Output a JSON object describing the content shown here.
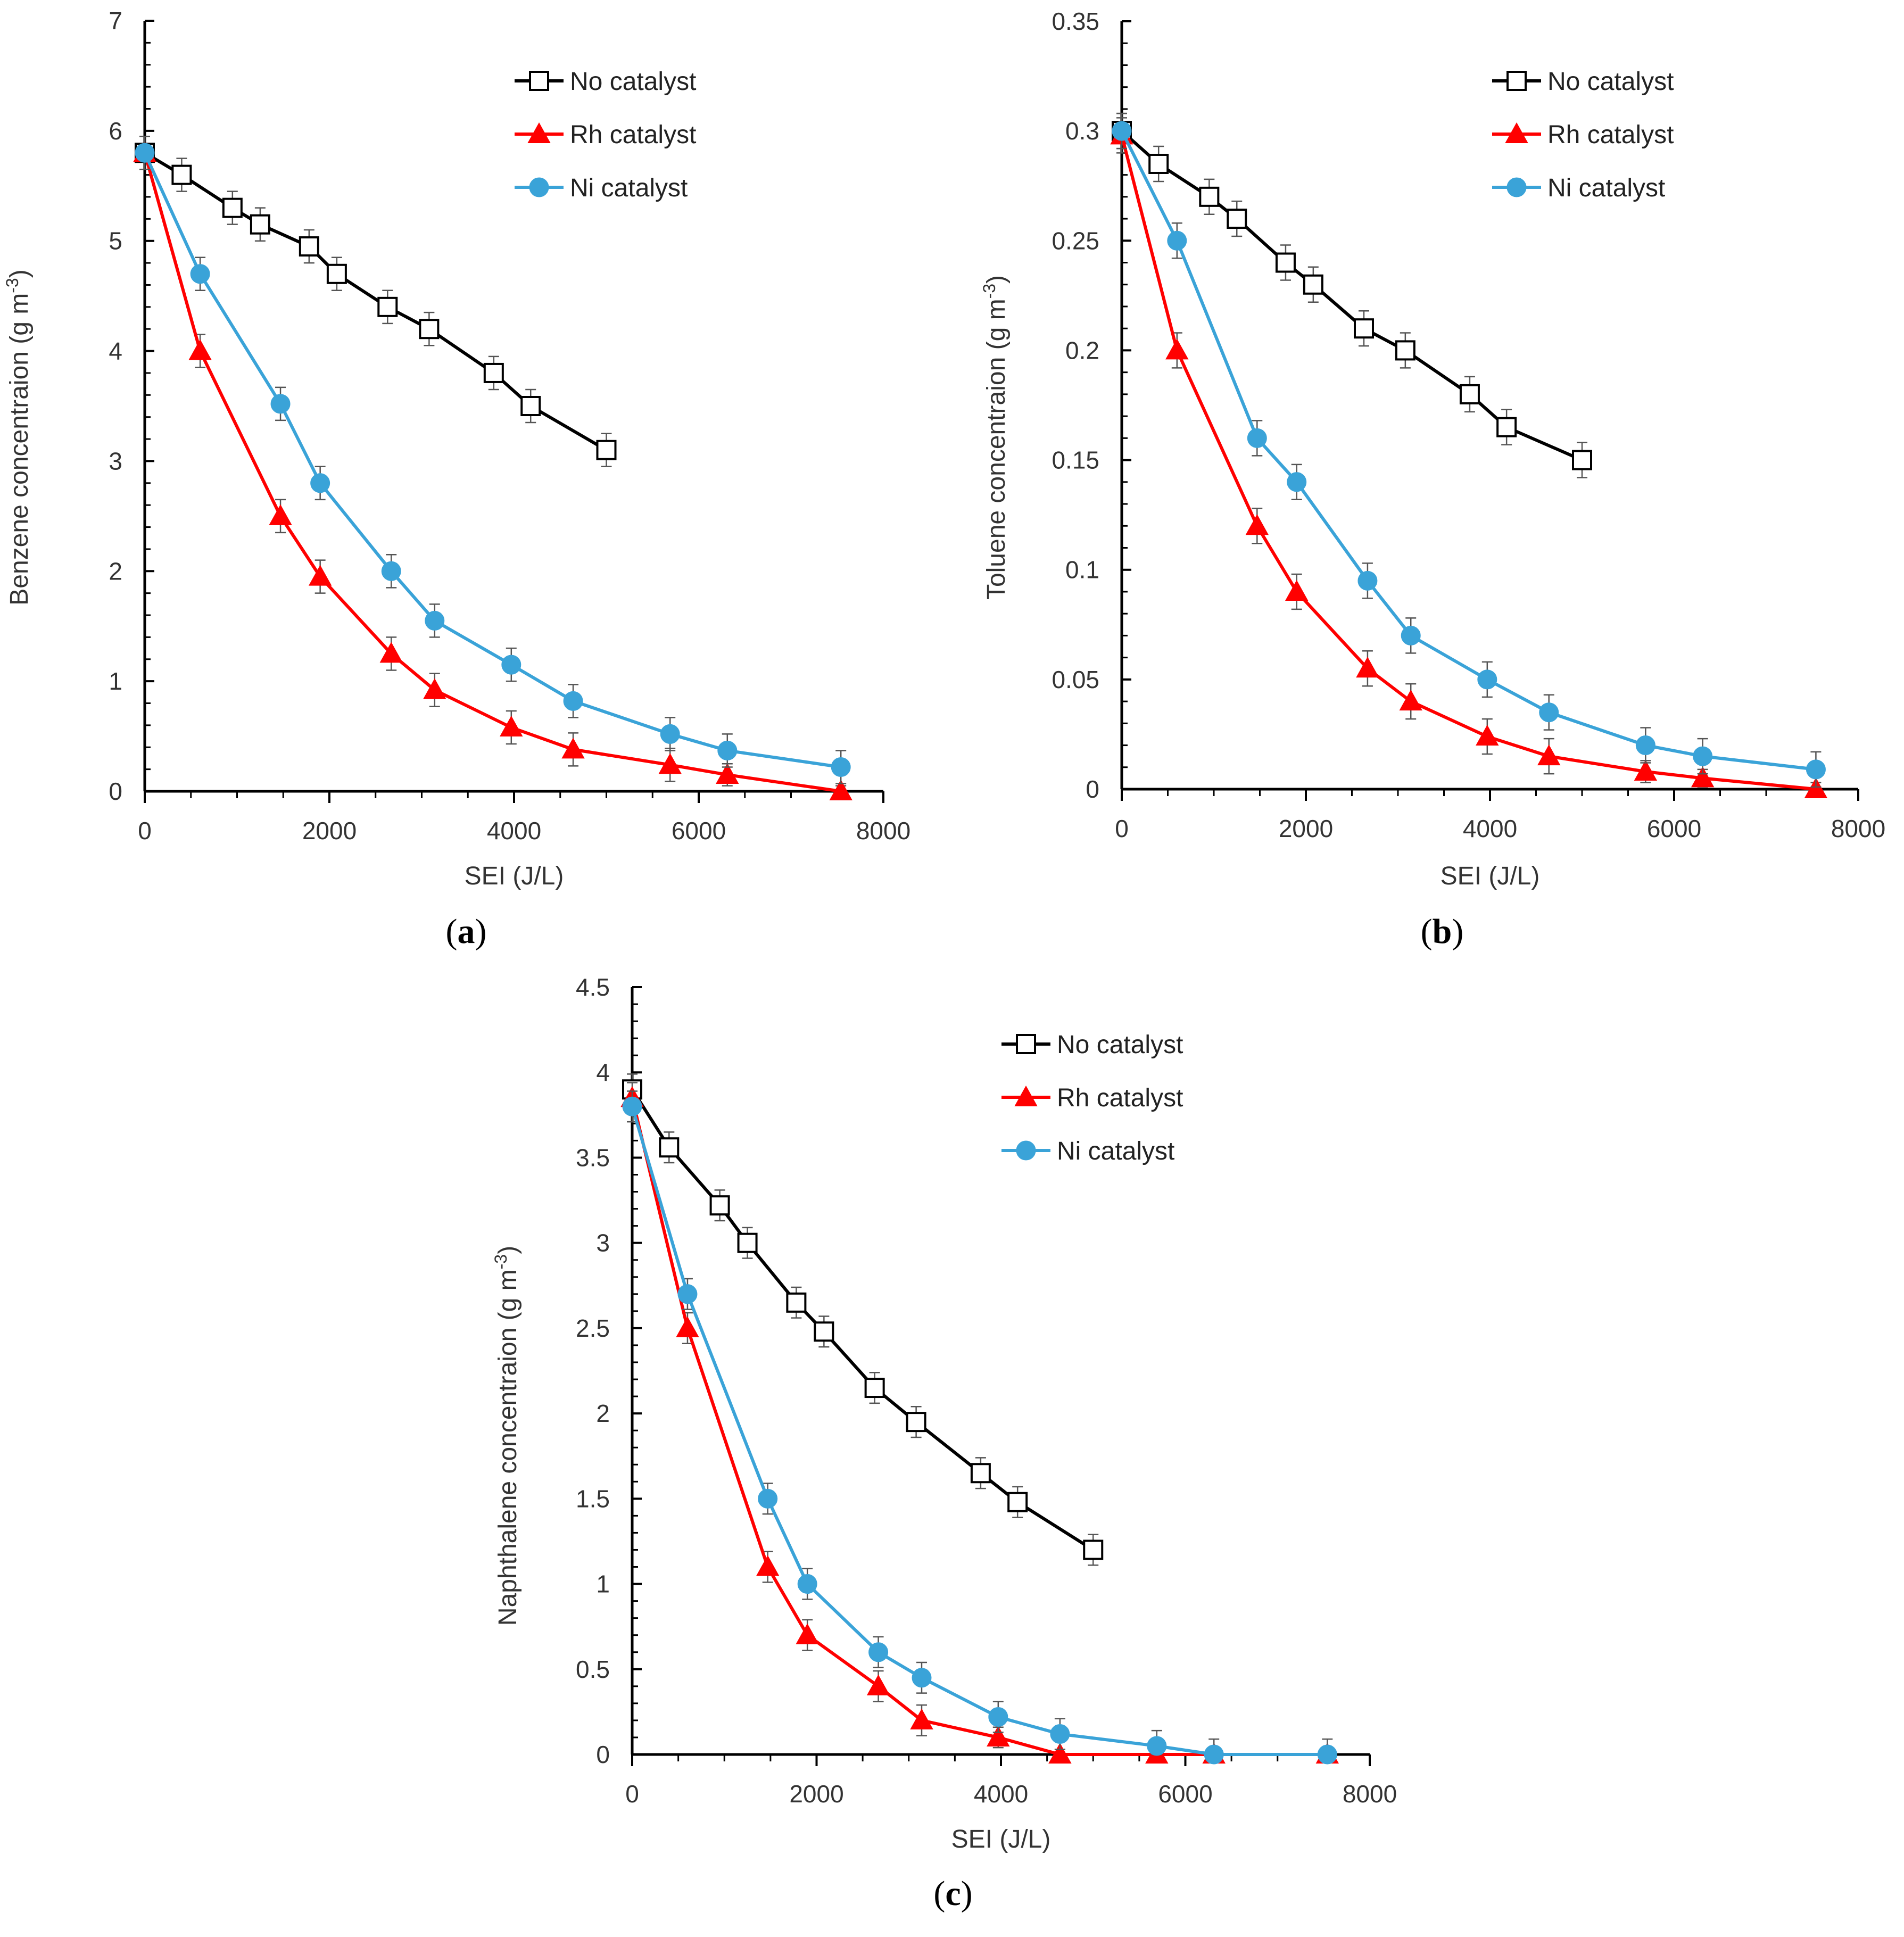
{
  "chart_data": [
    {
      "id": "a",
      "type": "line",
      "panel_label": "a",
      "xlabel": "SEI (J/L)",
      "ylabel_main": "Benzene concentraion (g m",
      "ylabel_sup": "-3",
      "ylabel_close": ")",
      "xlim": [
        0,
        8000
      ],
      "ylim": [
        0,
        7
      ],
      "xticks": [
        "0",
        "2000",
        "4000",
        "6000",
        "8000"
      ],
      "yticks": [
        "0",
        "1",
        "2",
        "3",
        "4",
        "5",
        "6",
        "7"
      ],
      "legend_position": "top-right",
      "series": [
        {
          "name": "No catalyst",
          "marker": "square",
          "color": "#000000",
          "x": [
            0,
            400,
            950,
            1250,
            1780,
            2080,
            2630,
            3080,
            3780,
            4180,
            5000
          ],
          "y": [
            5.8,
            5.6,
            5.3,
            5.15,
            4.95,
            4.7,
            4.4,
            4.2,
            3.8,
            3.5,
            3.1
          ],
          "err": [
            0.15,
            0.15,
            0.15,
            0.15,
            0.15,
            0.15,
            0.15,
            0.15,
            0.15,
            0.15,
            0.15
          ]
        },
        {
          "name": "Rh catalyst",
          "marker": "triangle",
          "color": "#ff0000",
          "x": [
            0,
            600,
            1470,
            1900,
            2670,
            3140,
            3970,
            4640,
            5690,
            6310,
            7540
          ],
          "y": [
            5.8,
            4.0,
            2.5,
            1.95,
            1.25,
            0.92,
            0.58,
            0.38,
            0.24,
            0.15,
            0.0
          ],
          "err": [
            0.15,
            0.15,
            0.15,
            0.15,
            0.15,
            0.15,
            0.15,
            0.15,
            0.15,
            0.1,
            0.05
          ]
        },
        {
          "name": "Ni catalyst",
          "marker": "circle",
          "color": "#3aa3d8",
          "x": [
            0,
            600,
            1470,
            1900,
            2670,
            3140,
            3970,
            4640,
            5690,
            6310,
            7540
          ],
          "y": [
            5.8,
            4.7,
            3.52,
            2.8,
            2.0,
            1.55,
            1.15,
            0.82,
            0.52,
            0.37,
            0.22
          ],
          "err": [
            0.15,
            0.15,
            0.15,
            0.15,
            0.15,
            0.15,
            0.15,
            0.15,
            0.15,
            0.15,
            0.15
          ]
        }
      ]
    },
    {
      "id": "b",
      "type": "line",
      "panel_label": "b",
      "xlabel": "SEI (J/L)",
      "ylabel_main": "Toluene concentraion (g m",
      "ylabel_sup": "-3",
      "ylabel_close": ")",
      "xlim": [
        0,
        8000
      ],
      "ylim": [
        0,
        0.35
      ],
      "xticks": [
        "0",
        "2000",
        "4000",
        "6000",
        "8000"
      ],
      "yticks": [
        "0",
        "0.05",
        "0.1",
        "0.15",
        "0.2",
        "0.25",
        "0.3",
        "0.35"
      ],
      "legend_position": "top-right",
      "series": [
        {
          "name": "No catalyst",
          "marker": "square",
          "color": "#000000",
          "x": [
            0,
            400,
            950,
            1250,
            1780,
            2080,
            2630,
            3080,
            3780,
            4180,
            5000
          ],
          "y": [
            0.3,
            0.285,
            0.27,
            0.26,
            0.24,
            0.23,
            0.21,
            0.2,
            0.18,
            0.165,
            0.15
          ],
          "err": [
            0.008,
            0.008,
            0.008,
            0.008,
            0.008,
            0.008,
            0.008,
            0.008,
            0.008,
            0.008,
            0.008
          ]
        },
        {
          "name": "Rh catalyst",
          "marker": "triangle",
          "color": "#ff0000",
          "x": [
            0,
            600,
            1470,
            1900,
            2670,
            3140,
            3970,
            4640,
            5690,
            6310,
            7540
          ],
          "y": [
            0.298,
            0.2,
            0.12,
            0.09,
            0.055,
            0.04,
            0.024,
            0.015,
            0.008,
            0.005,
            0.0
          ],
          "err": [
            0.008,
            0.008,
            0.008,
            0.008,
            0.008,
            0.008,
            0.008,
            0.008,
            0.005,
            0.004,
            0.003
          ]
        },
        {
          "name": "Ni catalyst",
          "marker": "circle",
          "color": "#3aa3d8",
          "x": [
            0,
            600,
            1470,
            1900,
            2670,
            3140,
            3970,
            4640,
            5690,
            6310,
            7540
          ],
          "y": [
            0.3,
            0.25,
            0.16,
            0.14,
            0.095,
            0.07,
            0.05,
            0.035,
            0.02,
            0.015,
            0.009
          ],
          "err": [
            0.008,
            0.008,
            0.008,
            0.008,
            0.008,
            0.008,
            0.008,
            0.008,
            0.008,
            0.008,
            0.008
          ]
        }
      ]
    },
    {
      "id": "c",
      "type": "line",
      "panel_label": "c",
      "xlabel": "SEI (J/L)",
      "ylabel_main": "Naphthalene concentraion (g m",
      "ylabel_sup": "-3",
      "ylabel_close": ")",
      "xlim": [
        0,
        8000
      ],
      "ylim": [
        0,
        4.5
      ],
      "xticks": [
        "0",
        "2000",
        "4000",
        "6000",
        "8000"
      ],
      "yticks": [
        "0",
        "0.5",
        "1",
        "1.5",
        "2",
        "2.5",
        "3",
        "3.5",
        "4",
        "4.5"
      ],
      "legend_position": "top-right",
      "series": [
        {
          "name": "No catalyst",
          "marker": "square",
          "color": "#000000",
          "x": [
            0,
            400,
            950,
            1250,
            1780,
            2080,
            2630,
            3080,
            3780,
            4180,
            5000
          ],
          "y": [
            3.9,
            3.56,
            3.22,
            3.0,
            2.65,
            2.48,
            2.15,
            1.95,
            1.65,
            1.48,
            1.2
          ],
          "err": [
            0.09,
            0.09,
            0.09,
            0.09,
            0.09,
            0.09,
            0.09,
            0.09,
            0.09,
            0.09,
            0.09
          ]
        },
        {
          "name": "Rh catalyst",
          "marker": "triangle",
          "color": "#ff0000",
          "x": [
            0,
            600,
            1470,
            1900,
            2670,
            3140,
            3970,
            4640,
            5690,
            6310,
            7540
          ],
          "y": [
            3.85,
            2.5,
            1.1,
            0.7,
            0.4,
            0.2,
            0.1,
            0.0,
            0.0,
            0.0,
            0.0
          ],
          "err": [
            0.09,
            0.09,
            0.09,
            0.09,
            0.09,
            0.09,
            0.06,
            0.03,
            0.03,
            0.03,
            0.03
          ]
        },
        {
          "name": "Ni catalyst",
          "marker": "circle",
          "color": "#3aa3d8",
          "x": [
            0,
            600,
            1470,
            1900,
            2670,
            3140,
            3970,
            4640,
            5690,
            6310,
            7540
          ],
          "y": [
            3.8,
            2.7,
            1.5,
            1.0,
            0.6,
            0.45,
            0.22,
            0.12,
            0.05,
            0.0,
            0.0
          ],
          "err": [
            0.09,
            0.09,
            0.09,
            0.09,
            0.09,
            0.09,
            0.09,
            0.09,
            0.09,
            0.09,
            0.09
          ]
        }
      ]
    }
  ]
}
